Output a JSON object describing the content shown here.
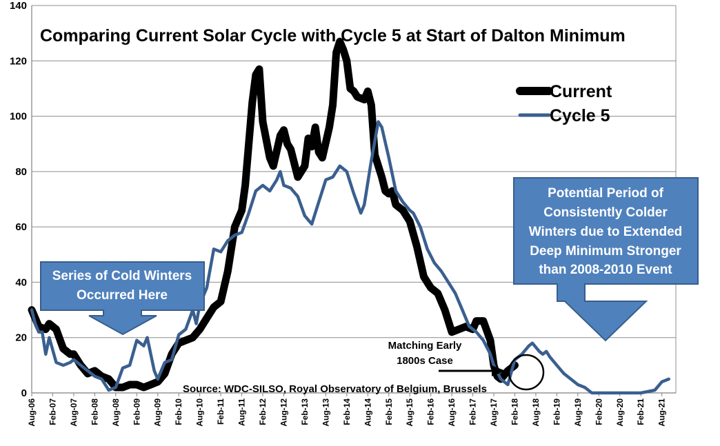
{
  "chart_data": {
    "type": "line",
    "title": "Comparing Current Solar Cycle with Cycle 5 at Start of Dalton Minimum",
    "ylim": [
      0,
      140
    ],
    "yticks": [
      0,
      20,
      40,
      60,
      80,
      100,
      120,
      140
    ],
    "grid": "horizontal",
    "legend_placement": "right",
    "x_tick_labels": [
      "Aug-06",
      "Feb-07",
      "Aug-07",
      "Feb-08",
      "Aug-08",
      "Feb-09",
      "Aug-09",
      "Feb-10",
      "Aug-10",
      "Feb-11",
      "Aug-11",
      "Feb-12",
      "Aug-12",
      "Feb-13",
      "Aug-13",
      "Feb-14",
      "Aug-14",
      "Feb-15",
      "Aug-15",
      "Feb-16",
      "Aug-16",
      "Feb-17",
      "Aug-17",
      "Feb-18",
      "Aug-18",
      "Feb-19",
      "Aug-19",
      "Feb-20",
      "Aug-20",
      "Feb-21",
      "Aug-21"
    ],
    "series": [
      {
        "name": "Current",
        "color": "#000000",
        "points": [
          [
            "Aug-06",
            30
          ],
          [
            "Oct-06",
            24
          ],
          [
            "Dec-06",
            23
          ],
          [
            "Jan-07",
            25
          ],
          [
            "Mar-07",
            23
          ],
          [
            "May-07",
            16
          ],
          [
            "Jul-07",
            14
          ],
          [
            "Aug-07",
            14
          ],
          [
            "Oct-07",
            10
          ],
          [
            "Dec-07",
            7
          ],
          [
            "Feb-08",
            8
          ],
          [
            "Apr-08",
            6
          ],
          [
            "Jun-08",
            5
          ],
          [
            "Aug-08",
            2
          ],
          [
            "Oct-08",
            2
          ],
          [
            "Dec-08",
            3
          ],
          [
            "Feb-09",
            3
          ],
          [
            "Apr-09",
            2
          ],
          [
            "Jun-09",
            3
          ],
          [
            "Aug-09",
            4
          ],
          [
            "Oct-09",
            7
          ],
          [
            "Dec-09",
            14
          ],
          [
            "Feb-10",
            18
          ],
          [
            "Apr-10",
            19
          ],
          [
            "Jun-10",
            20
          ],
          [
            "Aug-10",
            23
          ],
          [
            "Oct-10",
            27
          ],
          [
            "Dec-10",
            31
          ],
          [
            "Feb-11",
            33
          ],
          [
            "Apr-11",
            44
          ],
          [
            "Jun-11",
            60
          ],
          [
            "Aug-11",
            66
          ],
          [
            "Sep-11",
            75
          ],
          [
            "Nov-11",
            105
          ],
          [
            "Dec-11",
            115
          ],
          [
            "Jan-12",
            117
          ],
          [
            "Feb-12",
            98
          ],
          [
            "Apr-12",
            85
          ],
          [
            "May-12",
            82
          ],
          [
            "Jul-12",
            93
          ],
          [
            "Aug-12",
            95
          ],
          [
            "Sep-12",
            90
          ],
          [
            "Oct-12",
            88
          ],
          [
            "Dec-12",
            78
          ],
          [
            "Feb-13",
            82
          ],
          [
            "Mar-13",
            92
          ],
          [
            "Apr-13",
            89
          ],
          [
            "May-13",
            96
          ],
          [
            "Jun-13",
            87
          ],
          [
            "Jul-13",
            85
          ],
          [
            "Sep-13",
            96
          ],
          [
            "Oct-13",
            104
          ],
          [
            "Nov-13",
            123
          ],
          [
            "Dec-13",
            127
          ],
          [
            "Jan-14",
            124
          ],
          [
            "Feb-14",
            120
          ],
          [
            "Mar-14",
            110
          ],
          [
            "Apr-14",
            109
          ],
          [
            "May-14",
            107
          ],
          [
            "Jul-14",
            106
          ],
          [
            "Aug-14",
            109
          ],
          [
            "Sep-14",
            104
          ],
          [
            "Oct-14",
            86
          ],
          [
            "Dec-14",
            78
          ],
          [
            "Jan-15",
            73
          ],
          [
            "Feb-15",
            72
          ],
          [
            "Mar-15",
            73
          ],
          [
            "Apr-15",
            68
          ],
          [
            "Jun-15",
            66
          ],
          [
            "Aug-15",
            62
          ],
          [
            "Oct-15",
            53
          ],
          [
            "Dec-15",
            42
          ],
          [
            "Feb-16",
            38
          ],
          [
            "Apr-16",
            36
          ],
          [
            "Jun-16",
            30
          ],
          [
            "Aug-16",
            22
          ],
          [
            "Oct-16",
            23
          ],
          [
            "Dec-16",
            24
          ],
          [
            "Feb-17",
            23
          ],
          [
            "Mar-17",
            26
          ],
          [
            "May-17",
            26
          ],
          [
            "Jul-17",
            19
          ],
          [
            "Aug-17",
            10
          ],
          [
            "Sep-17",
            6
          ],
          [
            "Oct-17",
            5
          ],
          [
            "Dec-17",
            8
          ],
          [
            "Jan-18",
            9
          ],
          [
            "Feb-18",
            10
          ]
        ]
      },
      {
        "name": "Cycle 5",
        "color": "#3a5f8f",
        "points": [
          [
            "Aug-06",
            30
          ],
          [
            "Sep-06",
            25
          ],
          [
            "Oct-06",
            22
          ],
          [
            "Nov-06",
            22
          ],
          [
            "Dec-06",
            14
          ],
          [
            "Jan-07",
            20
          ],
          [
            "Mar-07",
            11
          ],
          [
            "May-07",
            10
          ],
          [
            "Jul-07",
            11
          ],
          [
            "Aug-07",
            12
          ],
          [
            "Oct-07",
            10
          ],
          [
            "Dec-07",
            8
          ],
          [
            "Feb-08",
            6
          ],
          [
            "Apr-08",
            5
          ],
          [
            "Jun-08",
            1
          ],
          [
            "Aug-08",
            2
          ],
          [
            "Oct-08",
            9
          ],
          [
            "Dec-08",
            10
          ],
          [
            "Feb-09",
            19
          ],
          [
            "Apr-09",
            17
          ],
          [
            "May-09",
            20
          ],
          [
            "Jun-09",
            14
          ],
          [
            "Jul-09",
            8
          ],
          [
            "Aug-09",
            5
          ],
          [
            "Oct-09",
            11
          ],
          [
            "Dec-09",
            12
          ],
          [
            "Feb-10",
            21
          ],
          [
            "Apr-10",
            23
          ],
          [
            "Jun-10",
            30
          ],
          [
            "Jul-10",
            25
          ],
          [
            "Aug-10",
            32
          ],
          [
            "Oct-10",
            38
          ],
          [
            "Dec-10",
            52
          ],
          [
            "Feb-11",
            51
          ],
          [
            "Apr-11",
            55
          ],
          [
            "Jun-11",
            57
          ],
          [
            "Aug-11",
            58
          ],
          [
            "Oct-11",
            65
          ],
          [
            "Dec-11",
            73
          ],
          [
            "Feb-12",
            75
          ],
          [
            "Apr-12",
            73
          ],
          [
            "Jun-12",
            77
          ],
          [
            "Jul-12",
            80
          ],
          [
            "Aug-12",
            75
          ],
          [
            "Oct-12",
            74
          ],
          [
            "Dec-12",
            71
          ],
          [
            "Feb-13",
            64
          ],
          [
            "Apr-13",
            61
          ],
          [
            "Jun-13",
            69
          ],
          [
            "Aug-13",
            77
          ],
          [
            "Oct-13",
            78
          ],
          [
            "Dec-13",
            82
          ],
          [
            "Feb-14",
            80
          ],
          [
            "Apr-14",
            72
          ],
          [
            "Jun-14",
            65
          ],
          [
            "Jul-14",
            68
          ],
          [
            "Sep-14",
            84
          ],
          [
            "Nov-14",
            98
          ],
          [
            "Dec-14",
            96
          ],
          [
            "Feb-15",
            85
          ],
          [
            "Apr-15",
            73
          ],
          [
            "Jun-15",
            69
          ],
          [
            "Aug-15",
            66
          ],
          [
            "Sep-15",
            65
          ],
          [
            "Nov-15",
            60
          ],
          [
            "Jan-16",
            52
          ],
          [
            "Mar-16",
            47
          ],
          [
            "May-16",
            44
          ],
          [
            "Jul-16",
            40
          ],
          [
            "Sep-16",
            36
          ],
          [
            "Nov-16",
            30
          ],
          [
            "Jan-17",
            24
          ],
          [
            "Mar-17",
            22
          ],
          [
            "May-17",
            19
          ],
          [
            "Jul-17",
            14
          ],
          [
            "Aug-17",
            10
          ],
          [
            "Oct-17",
            5
          ],
          [
            "Dec-17",
            3
          ],
          [
            "Feb-18",
            12
          ],
          [
            "Apr-18",
            14
          ],
          [
            "Jun-18",
            17
          ],
          [
            "Jul-18",
            18
          ],
          [
            "Sep-18",
            15
          ],
          [
            "Oct-18",
            14
          ],
          [
            "Nov-18",
            15
          ],
          [
            "Dec-18",
            13
          ],
          [
            "Feb-19",
            10
          ],
          [
            "Apr-19",
            7
          ],
          [
            "Jun-19",
            5
          ],
          [
            "Aug-19",
            3
          ],
          [
            "Oct-19",
            2
          ],
          [
            "Dec-19",
            0
          ],
          [
            "Feb-20",
            0
          ],
          [
            "Aug-20",
            0
          ],
          [
            "Feb-21",
            0
          ],
          [
            "Jun-21",
            1
          ],
          [
            "Aug-21",
            4
          ],
          [
            "Oct-21",
            5
          ]
        ]
      }
    ],
    "annotations": {
      "cold_winters_box": [
        "Series of Cold Winters",
        "Occurred Here"
      ],
      "potential_box": [
        "Potential Period of",
        "Consistently Colder",
        "Winters due to Extended",
        "Deep Minimum Stronger",
        "than 2008-2010 Event"
      ],
      "matching_note": [
        "Matching Early",
        "1800s Case"
      ],
      "source": "Source: WDC-SILSO, Royal Observatory of Belgium, Brussels"
    },
    "colors": {
      "callout_fill": "#4f81bd",
      "callout_border": "#385d8a",
      "current_line": "#000000",
      "cycle5_line": "#3a5f8f"
    }
  }
}
